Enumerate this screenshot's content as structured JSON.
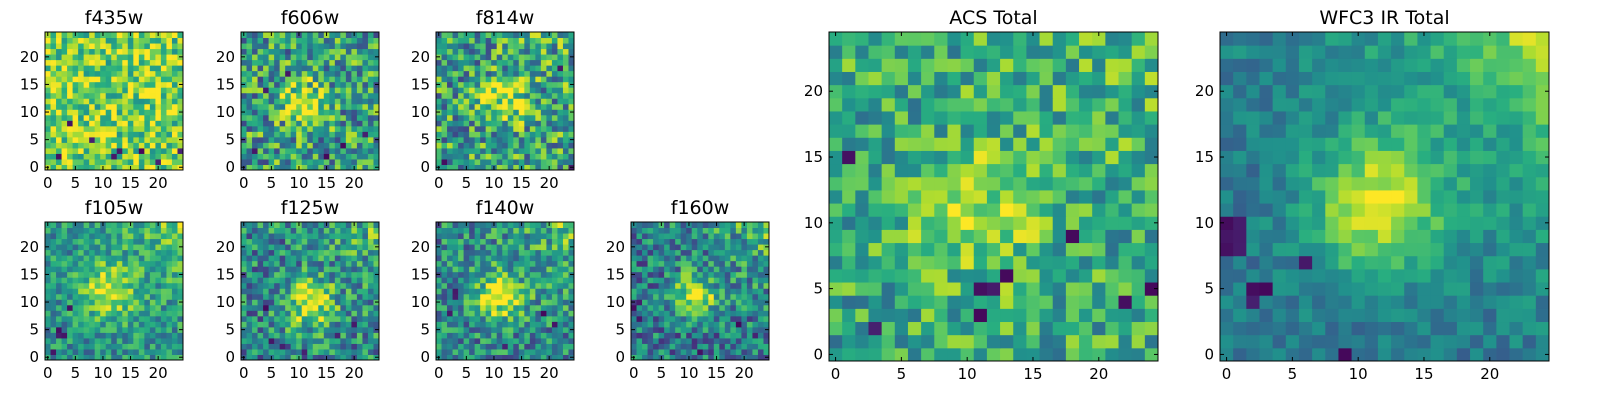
{
  "figure": {
    "description_type": "grid of 2D intensity images (viridis colormap)",
    "colormap": [
      "#440154",
      "#472d7b",
      "#3b528b",
      "#2c728e",
      "#21918c",
      "#28ae80",
      "#5ec962",
      "#addc30",
      "#fde725"
    ]
  },
  "chart_data": [
    {
      "type": "heatmap",
      "title": "f435w",
      "grid": [
        25,
        25
      ],
      "xlim": [
        0,
        25
      ],
      "ylim": [
        0,
        25
      ],
      "xticks": [
        0,
        5,
        10,
        15,
        20
      ],
      "yticks": [
        0,
        5,
        10,
        15,
        20
      ],
      "pattern": {
        "base": 0.78,
        "noise": 0.28,
        "blob": {
          "x": 2.5,
          "y": 13,
          "sigma": 3,
          "amp": 0.1
        },
        "gradient": 0.0,
        "dark_pixels": [
          [
            12,
            2
          ],
          [
            13,
            3
          ],
          [
            17,
            3
          ],
          [
            20,
            1
          ],
          [
            24,
            3
          ],
          [
            8,
            5
          ],
          [
            4,
            8
          ],
          [
            2,
            2
          ]
        ]
      }
    },
    {
      "type": "heatmap",
      "title": "f606w",
      "grid": [
        25,
        25
      ],
      "xlim": [
        0,
        25
      ],
      "ylim": [
        0,
        25
      ],
      "xticks": [
        0,
        5,
        10,
        15,
        20
      ],
      "yticks": [
        0,
        5,
        10,
        15,
        20
      ],
      "pattern": {
        "base": 0.55,
        "noise": 0.35,
        "blob": {
          "x": 11,
          "y": 12,
          "sigma": 3,
          "amp": 0.35
        },
        "gradient": 0.0,
        "dark_pixels": [
          [
            4,
            14
          ],
          [
            15,
            2
          ],
          [
            18,
            4
          ],
          [
            22,
            6
          ],
          [
            2,
            3
          ],
          [
            8,
            17
          ]
        ]
      }
    },
    {
      "type": "heatmap",
      "title": "f814w",
      "grid": [
        25,
        25
      ],
      "xlim": [
        0,
        25
      ],
      "ylim": [
        0,
        25
      ],
      "xticks": [
        0,
        5,
        10,
        15,
        20
      ],
      "yticks": [
        0,
        5,
        10,
        15,
        20
      ],
      "pattern": {
        "base": 0.55,
        "noise": 0.35,
        "blob": {
          "x": 12,
          "y": 12,
          "sigma": 3,
          "amp": 0.35
        },
        "gradient": 0.1,
        "dark_pixels": [
          [
            1,
            1
          ],
          [
            22,
            18
          ],
          [
            24,
            0
          ]
        ]
      }
    },
    {
      "type": "heatmap",
      "title": "f105w",
      "grid": [
        25,
        25
      ],
      "xlim": [
        0,
        25
      ],
      "ylim": [
        0,
        25
      ],
      "xticks": [
        0,
        5,
        10,
        15,
        20
      ],
      "yticks": [
        0,
        5,
        10,
        15,
        20
      ],
      "pattern": {
        "base": 0.5,
        "noise": 0.22,
        "blob": {
          "x": 11,
          "y": 12,
          "sigma": 3.5,
          "amp": 0.45
        },
        "gradient": 0.3,
        "dark_pixels": [
          [
            2,
            4
          ],
          [
            2,
            5
          ],
          [
            3,
            4
          ],
          [
            4,
            9
          ],
          [
            1,
            1
          ]
        ]
      }
    },
    {
      "type": "heatmap",
      "title": "f125w",
      "grid": [
        25,
        25
      ],
      "xlim": [
        0,
        25
      ],
      "ylim": [
        0,
        25
      ],
      "xticks": [
        0,
        5,
        10,
        15,
        20
      ],
      "yticks": [
        0,
        5,
        10,
        15,
        20
      ],
      "pattern": {
        "base": 0.45,
        "noise": 0.3,
        "blob": {
          "x": 12,
          "y": 10,
          "sigma": 3.2,
          "amp": 0.5
        },
        "gradient": 0.25,
        "dark_pixels": [
          [
            4,
            9
          ],
          [
            7,
            2
          ],
          [
            11,
            1
          ],
          [
            17,
            4
          ],
          [
            20,
            6
          ],
          [
            5,
            3
          ]
        ]
      }
    },
    {
      "type": "heatmap",
      "title": "f140w",
      "grid": [
        25,
        25
      ],
      "xlim": [
        0,
        25
      ],
      "ylim": [
        0,
        25
      ],
      "xticks": [
        0,
        5,
        10,
        15,
        20
      ],
      "yticks": [
        0,
        5,
        10,
        15,
        20
      ],
      "pattern": {
        "base": 0.45,
        "noise": 0.28,
        "blob": {
          "x": 11,
          "y": 11,
          "sigma": 3.2,
          "amp": 0.5
        },
        "gradient": 0.3,
        "dark_pixels": [
          [
            3,
            11
          ],
          [
            3,
            12
          ],
          [
            2,
            8
          ],
          [
            12,
            2
          ],
          [
            19,
            8
          ],
          [
            21,
            6
          ]
        ]
      }
    },
    {
      "type": "heatmap",
      "title": "f160w",
      "grid": [
        25,
        25
      ],
      "xlim": [
        0,
        25
      ],
      "ylim": [
        0,
        25
      ],
      "xticks": [
        0,
        5,
        10,
        15,
        20
      ],
      "yticks": [
        0,
        5,
        10,
        15,
        20
      ],
      "pattern": {
        "base": 0.4,
        "noise": 0.28,
        "blob": {
          "x": 11,
          "y": 11,
          "sigma": 2.8,
          "amp": 0.55
        },
        "gradient": 0.35,
        "dark_pixels": [
          [
            0,
            9
          ],
          [
            1,
            10
          ],
          [
            1,
            7
          ],
          [
            12,
            1
          ],
          [
            19,
            6
          ],
          [
            22,
            4
          ]
        ]
      }
    },
    {
      "type": "heatmap",
      "title": "ACS Total",
      "grid": [
        25,
        25
      ],
      "xlim": [
        0,
        25
      ],
      "ylim": [
        0,
        25
      ],
      "xticks": [
        0,
        5,
        10,
        15,
        20
      ],
      "yticks": [
        0,
        5,
        10,
        15,
        20
      ],
      "pattern": {
        "base": 0.6,
        "noise": 0.25,
        "blob": {
          "x": 11,
          "y": 11,
          "sigma": 3.5,
          "amp": 0.3
        },
        "gradient": 0.1,
        "dark_pixels": [
          [
            18,
            9
          ],
          [
            13,
            6
          ],
          [
            12,
            5
          ],
          [
            11,
            5
          ],
          [
            24,
            5
          ],
          [
            22,
            4
          ],
          [
            11,
            3
          ],
          [
            1,
            15
          ],
          [
            3,
            2
          ]
        ]
      }
    },
    {
      "type": "heatmap",
      "title": "WFC3 IR Total",
      "grid": [
        25,
        25
      ],
      "xlim": [
        0,
        25
      ],
      "ylim": [
        0,
        25
      ],
      "xticks": [
        0,
        5,
        10,
        15,
        20
      ],
      "yticks": [
        0,
        5,
        10,
        15,
        20
      ],
      "pattern": {
        "base": 0.4,
        "noise": 0.12,
        "blob": {
          "x": 11.5,
          "y": 11.5,
          "sigma": 3.8,
          "amp": 0.5
        },
        "gradient": 0.5,
        "dark_pixels": [
          [
            0,
            9
          ],
          [
            1,
            9
          ],
          [
            0,
            10
          ],
          [
            1,
            10
          ],
          [
            0,
            8
          ],
          [
            1,
            8
          ],
          [
            2,
            4
          ],
          [
            2,
            5
          ],
          [
            3,
            5
          ],
          [
            6,
            7
          ],
          [
            9,
            0
          ]
        ]
      }
    }
  ]
}
